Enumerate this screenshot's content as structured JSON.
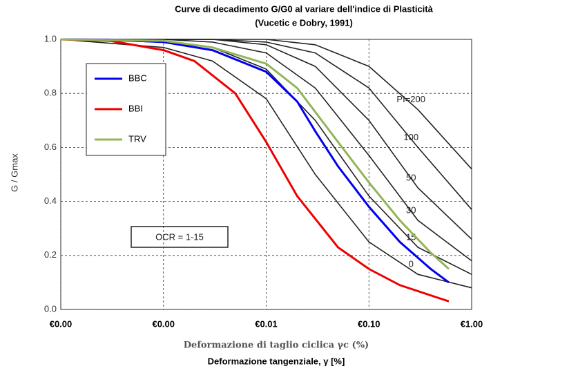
{
  "chart_data": {
    "type": "line",
    "title": "Curve di decadimento G/G0 al variare dell'indice di Plasticità",
    "subtitle": "(Vucetic e Dobry, 1991)",
    "x_label": "Deformazione di taglio ciclica γc (%)",
    "x_label_2": "Deformazione tangenziale, γ [%]",
    "y_label": "G / Gmax",
    "annotation": "OCR = 1-15",
    "log_x": true,
    "grid": true,
    "legend": "upper left",
    "xlim": [
      0.0001,
      1
    ],
    "ylim": [
      0,
      1
    ],
    "xticks": [
      {
        "value": 0.0001,
        "label": "€0.00"
      },
      {
        "value": 0.001,
        "label": "€0.00"
      },
      {
        "value": 0.01,
        "label": "€0.01"
      },
      {
        "value": 0.1,
        "label": "€0.10"
      },
      {
        "value": 1,
        "label": "€1.00"
      }
    ],
    "yticks": [
      {
        "value": 0,
        "label": "0.0"
      },
      {
        "value": 0.2,
        "label": "0.2"
      },
      {
        "value": 0.4,
        "label": "0.4"
      },
      {
        "value": 0.6,
        "label": "0.6"
      },
      {
        "value": 0.8,
        "label": "0.8"
      },
      {
        "value": 1,
        "label": "1.0"
      }
    ],
    "series": [
      {
        "name": "BBC",
        "color": "#0000ee",
        "x": [
          0.0001,
          0.0003,
          0.001,
          0.003,
          0.01,
          0.02,
          0.03,
          0.05,
          0.1,
          0.2,
          0.4,
          0.6
        ],
        "values": [
          1.0,
          0.999,
          0.99,
          0.96,
          0.88,
          0.77,
          0.66,
          0.53,
          0.38,
          0.25,
          0.15,
          0.1
        ]
      },
      {
        "name": "BBI",
        "color": "#ee0000",
        "x": [
          0.0001,
          0.0003,
          0.001,
          0.002,
          0.005,
          0.01,
          0.02,
          0.05,
          0.1,
          0.2,
          0.6
        ],
        "values": [
          1.0,
          0.995,
          0.96,
          0.92,
          0.8,
          0.62,
          0.42,
          0.23,
          0.15,
          0.09,
          0.03
        ]
      },
      {
        "name": "TRV",
        "color": "#92b558",
        "x": [
          0.0001,
          0.001,
          0.003,
          0.01,
          0.02,
          0.05,
          0.1,
          0.2,
          0.4,
          0.6
        ],
        "values": [
          1.0,
          0.995,
          0.97,
          0.91,
          0.82,
          0.62,
          0.47,
          0.33,
          0.21,
          0.15
        ]
      }
    ],
    "reference_x": [
      0.0001,
      0.001,
      0.003,
      0.01,
      0.03,
      0.1,
      0.3,
      1
    ],
    "reference_curves": [
      {
        "label": "0",
        "values": [
          1,
          0.97,
          0.92,
          0.78,
          0.5,
          0.25,
          0.13,
          0.08
        ]
      },
      {
        "label": "15",
        "values": [
          1,
          0.99,
          0.97,
          0.89,
          0.7,
          0.42,
          0.23,
          0.13
        ]
      },
      {
        "label": "30",
        "values": [
          1,
          1,
          0.99,
          0.95,
          0.82,
          0.57,
          0.33,
          0.18
        ]
      },
      {
        "label": "50",
        "values": [
          1,
          1,
          1,
          0.98,
          0.9,
          0.7,
          0.45,
          0.26
        ]
      },
      {
        "label": "100",
        "values": [
          1,
          1,
          1,
          0.99,
          0.95,
          0.82,
          0.6,
          0.37
        ]
      },
      {
        "label": "PI=200",
        "values": [
          1,
          1,
          1,
          1,
          0.98,
          0.9,
          0.74,
          0.52
        ]
      }
    ]
  }
}
